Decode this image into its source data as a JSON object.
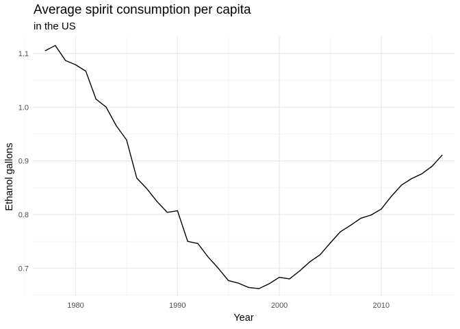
{
  "chart_data": {
    "type": "line",
    "title": "Average spirit consumption per capita",
    "subtitle": "in the US",
    "xlabel": "Year",
    "ylabel": "Ethanol gallons",
    "xlim": [
      1975.8,
      2017.2
    ],
    "ylim": [
      0.648,
      1.132
    ],
    "x_ticks": [
      1980,
      1990,
      2000,
      2010
    ],
    "y_ticks": [
      0.7,
      0.8,
      0.9,
      1.0,
      1.1
    ],
    "y_tick_labels": [
      "0.7",
      "0.8",
      "0.9",
      "1.0",
      "1.1"
    ],
    "grid": true,
    "line_color": "#000000",
    "series": [
      {
        "x": [
          1977,
          1978,
          1979,
          1980,
          1981,
          1982,
          1983,
          1984,
          1985,
          1986,
          1987,
          1988,
          1989,
          1990,
          1991,
          1992,
          1993,
          1994,
          1995,
          1996,
          1997,
          1998,
          1999,
          2000,
          2001,
          2002,
          2003,
          2004,
          2005,
          2006,
          2007,
          2008,
          2009,
          2010,
          2011,
          2012,
          2013,
          2014,
          2015,
          2016
        ],
        "values": [
          1.105,
          1.115,
          1.087,
          1.079,
          1.067,
          1.015,
          1.0,
          0.965,
          0.939,
          0.868,
          0.848,
          0.824,
          0.804,
          0.807,
          0.75,
          0.746,
          0.721,
          0.7,
          0.677,
          0.672,
          0.664,
          0.662,
          0.671,
          0.683,
          0.68,
          0.695,
          0.712,
          0.725,
          0.747,
          0.768,
          0.78,
          0.793,
          0.799,
          0.81,
          0.834,
          0.855,
          0.867,
          0.876,
          0.89,
          0.911
        ]
      }
    ]
  }
}
